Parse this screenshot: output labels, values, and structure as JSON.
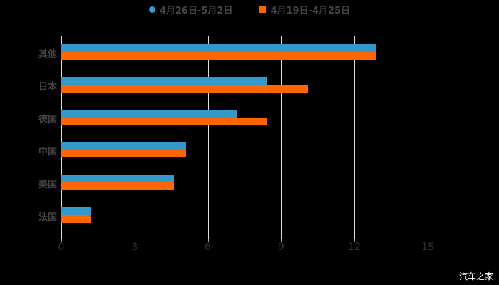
{
  "chart_data": {
    "type": "bar",
    "orientation": "horizontal",
    "title": "",
    "categories": [
      "其他",
      "日本",
      "德国",
      "中国",
      "美国",
      "法国"
    ],
    "series": [
      {
        "name": "4月26日-5月2日",
        "color": "#3399cc",
        "values": [
          12.9,
          8.4,
          7.2,
          5.1,
          4.6,
          1.2
        ]
      },
      {
        "name": "4月19日-4月25日",
        "color": "#ff6600",
        "values": [
          12.9,
          10.1,
          8.4,
          5.1,
          4.6,
          1.2
        ]
      }
    ],
    "xlim": [
      0,
      15
    ],
    "xticks": [
      "0",
      "3",
      "6",
      "9",
      "12",
      "15"
    ],
    "xlabel": "",
    "ylabel": "",
    "grid": true,
    "legend_position": "top"
  },
  "legend": {
    "s1": "4月26日-5月2日",
    "s2": "4月19日-4月25日"
  },
  "watermark": "汽车之家"
}
